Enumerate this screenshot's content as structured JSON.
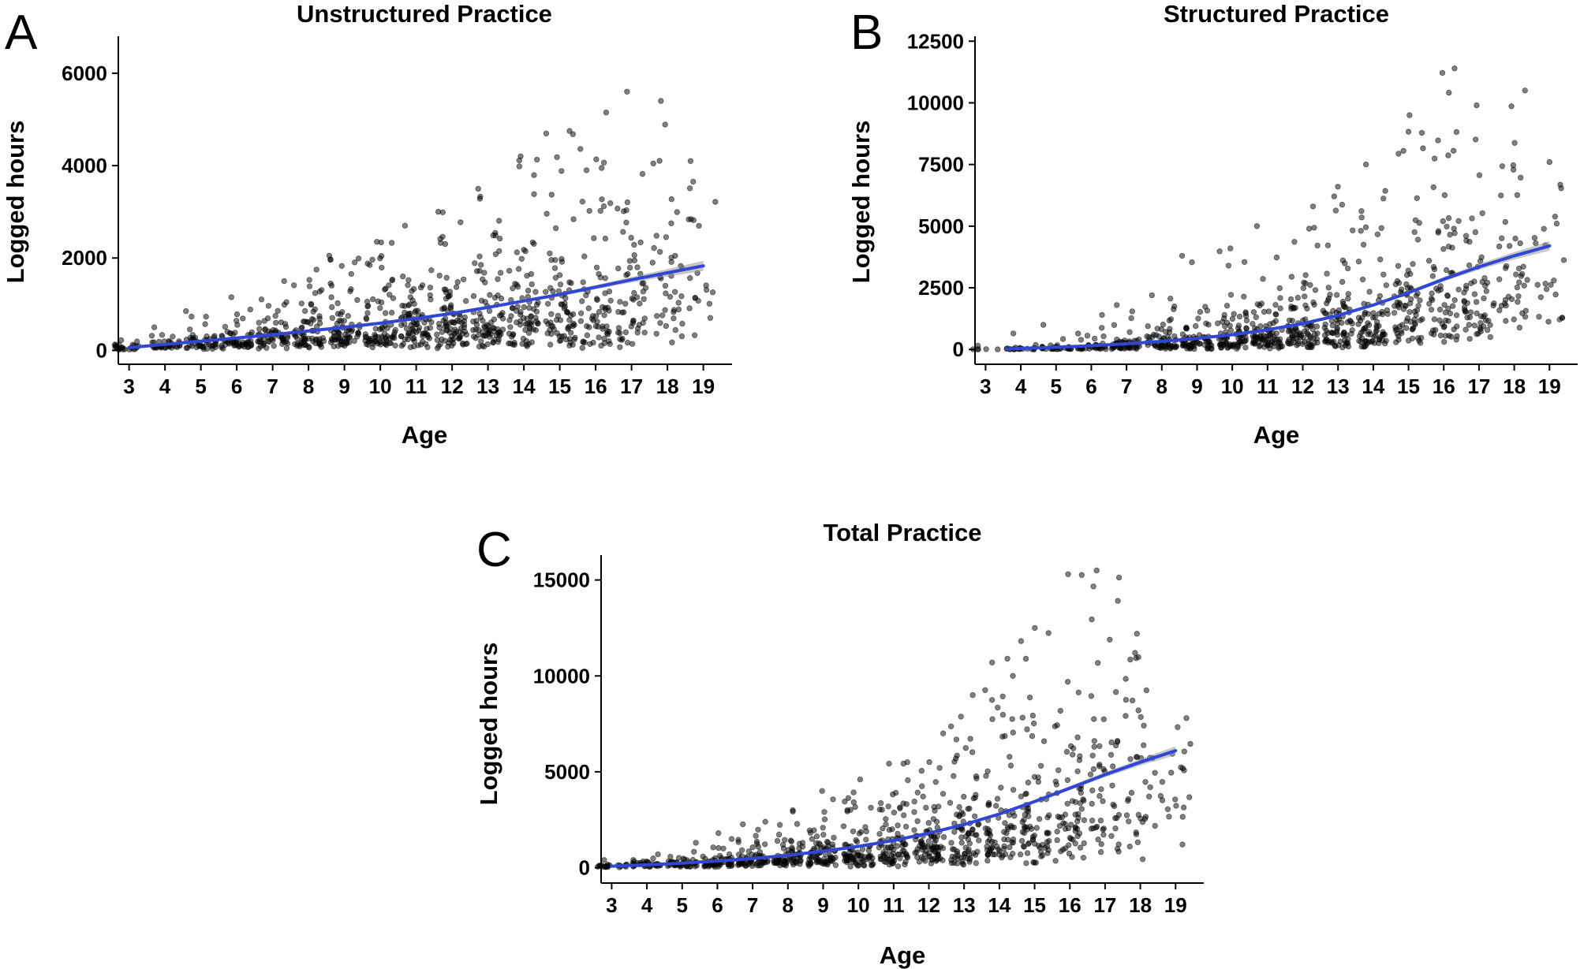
{
  "figure": {
    "panel_letters": [
      "A",
      "B",
      "C"
    ]
  },
  "chart_data": [
    {
      "id": "A",
      "type": "scatter",
      "title": "Unstructured Practice",
      "xlabel": "Age",
      "ylabel": "Logged hours",
      "xlim": [
        2.7,
        19.8
      ],
      "ylim": [
        -300,
        6800
      ],
      "x_ticks": [
        3,
        4,
        5,
        6,
        7,
        8,
        9,
        10,
        11,
        12,
        13,
        14,
        15,
        16,
        17,
        18,
        19
      ],
      "y_ticks": [
        0,
        2000,
        4000,
        6000
      ],
      "smooth_fit": {
        "x": [
          3,
          4,
          5,
          6,
          7,
          8,
          9,
          10,
          11,
          12,
          13,
          14,
          15,
          16,
          17,
          18,
          19
        ],
        "y": [
          60,
          130,
          200,
          270,
          340,
          420,
          500,
          590,
          690,
          800,
          930,
          1070,
          1210,
          1370,
          1530,
          1680,
          1830
        ],
        "ci_halfwidth": [
          30,
          20,
          15,
          12,
          12,
          12,
          12,
          14,
          16,
          18,
          22,
          28,
          35,
          45,
          60,
          80,
          110
        ]
      },
      "jitter": {
        "counts": [
          25,
          35,
          45,
          55,
          62,
          70,
          75,
          80,
          85,
          88,
          85,
          80,
          75,
          68,
          55,
          40,
          20
        ],
        "median": [
          60,
          110,
          170,
          230,
          300,
          360,
          420,
          480,
          540,
          600,
          660,
          720,
          780,
          850,
          930,
          1000,
          1100
        ],
        "spread": [
          0.6,
          0.7,
          0.75,
          0.8,
          0.8,
          0.85,
          0.85,
          0.9,
          0.9,
          0.9,
          0.9,
          0.9,
          0.9,
          0.9,
          0.85,
          0.8,
          0.7
        ],
        "max": [
          220,
          500,
          850,
          1150,
          1500,
          1750,
          2050,
          2350,
          2700,
          3000,
          3500,
          4200,
          4750,
          5150,
          5600,
          5400,
          4100
        ],
        "seed": 11
      }
    },
    {
      "id": "B",
      "type": "scatter",
      "title": "Structured Practice",
      "xlabel": "Age",
      "ylabel": "Logged hours",
      "xlim": [
        2.7,
        19.8
      ],
      "ylim": [
        -600,
        12700
      ],
      "x_ticks": [
        3,
        4,
        5,
        6,
        7,
        8,
        9,
        10,
        11,
        12,
        13,
        14,
        15,
        16,
        17,
        18,
        19
      ],
      "y_ticks": [
        0,
        2500,
        5000,
        7500,
        10000,
        12500
      ],
      "smooth_fit": {
        "x": [
          3.6,
          4,
          5,
          6,
          7,
          8,
          9,
          10,
          11,
          12,
          13,
          14,
          15,
          16,
          17,
          18,
          19
        ],
        "y": [
          20,
          40,
          90,
          150,
          230,
          330,
          450,
          600,
          800,
          1050,
          1380,
          1800,
          2300,
          2850,
          3350,
          3800,
          4200
        ],
        "ci_halfwidth": [
          40,
          30,
          25,
          20,
          20,
          20,
          22,
          25,
          30,
          35,
          45,
          55,
          70,
          90,
          120,
          150,
          190
        ]
      },
      "jitter": {
        "counts": [
          6,
          20,
          30,
          40,
          52,
          60,
          70,
          78,
          84,
          88,
          86,
          82,
          78,
          70,
          58,
          42,
          22
        ],
        "median": [
          10,
          30,
          60,
          100,
          160,
          230,
          320,
          420,
          550,
          700,
          880,
          1100,
          1650,
          2300,
          2800,
          3200,
          3600
        ],
        "spread": [
          0.6,
          0.8,
          0.85,
          0.9,
          0.9,
          0.95,
          0.95,
          1.0,
          1.0,
          1.0,
          1.0,
          0.95,
          0.9,
          0.85,
          0.8,
          0.75,
          0.7
        ],
        "max": [
          150,
          650,
          1000,
          1400,
          1800,
          2200,
          3800,
          4100,
          5000,
          5800,
          6600,
          7500,
          9500,
          11400,
          9900,
          10500,
          7600
        ],
        "seed": 23
      }
    },
    {
      "id": "C",
      "type": "scatter",
      "title": "Total Practice",
      "xlabel": "Age",
      "ylabel": "Logged hours",
      "xlim": [
        2.7,
        19.8
      ],
      "ylim": [
        -800,
        16300
      ],
      "x_ticks": [
        3,
        4,
        5,
        6,
        7,
        8,
        9,
        10,
        11,
        12,
        13,
        14,
        15,
        16,
        17,
        18,
        19
      ],
      "y_ticks": [
        0,
        5000,
        10000,
        15000
      ],
      "smooth_fit": {
        "x": [
          3,
          4,
          5,
          6,
          7,
          8,
          9,
          10,
          11,
          12,
          13,
          14,
          15,
          16,
          17,
          18,
          19
        ],
        "y": [
          80,
          150,
          240,
          350,
          480,
          650,
          860,
          1110,
          1420,
          1800,
          2250,
          2800,
          3450,
          4150,
          4850,
          5500,
          6100
        ],
        "ci_halfwidth": [
          40,
          30,
          25,
          22,
          22,
          22,
          25,
          28,
          32,
          38,
          48,
          60,
          80,
          100,
          130,
          170,
          230
        ]
      },
      "jitter": {
        "counts": [
          25,
          35,
          45,
          55,
          62,
          70,
          75,
          80,
          85,
          88,
          85,
          80,
          75,
          68,
          55,
          40,
          20
        ],
        "median": [
          70,
          130,
          200,
          280,
          380,
          500,
          650,
          800,
          1000,
          1250,
          1550,
          1900,
          2400,
          3000,
          3700,
          4200,
          4800
        ],
        "spread": [
          0.6,
          0.7,
          0.75,
          0.8,
          0.8,
          0.85,
          0.85,
          0.9,
          0.9,
          0.9,
          0.9,
          0.9,
          0.9,
          0.85,
          0.8,
          0.75,
          0.6
        ],
        "max": [
          400,
          700,
          1300,
          1800,
          2400,
          3000,
          4000,
          4600,
          5500,
          7000,
          9000,
          10900,
          12500,
          15300,
          15500,
          12200,
          7800
        ],
        "seed": 37
      }
    }
  ]
}
